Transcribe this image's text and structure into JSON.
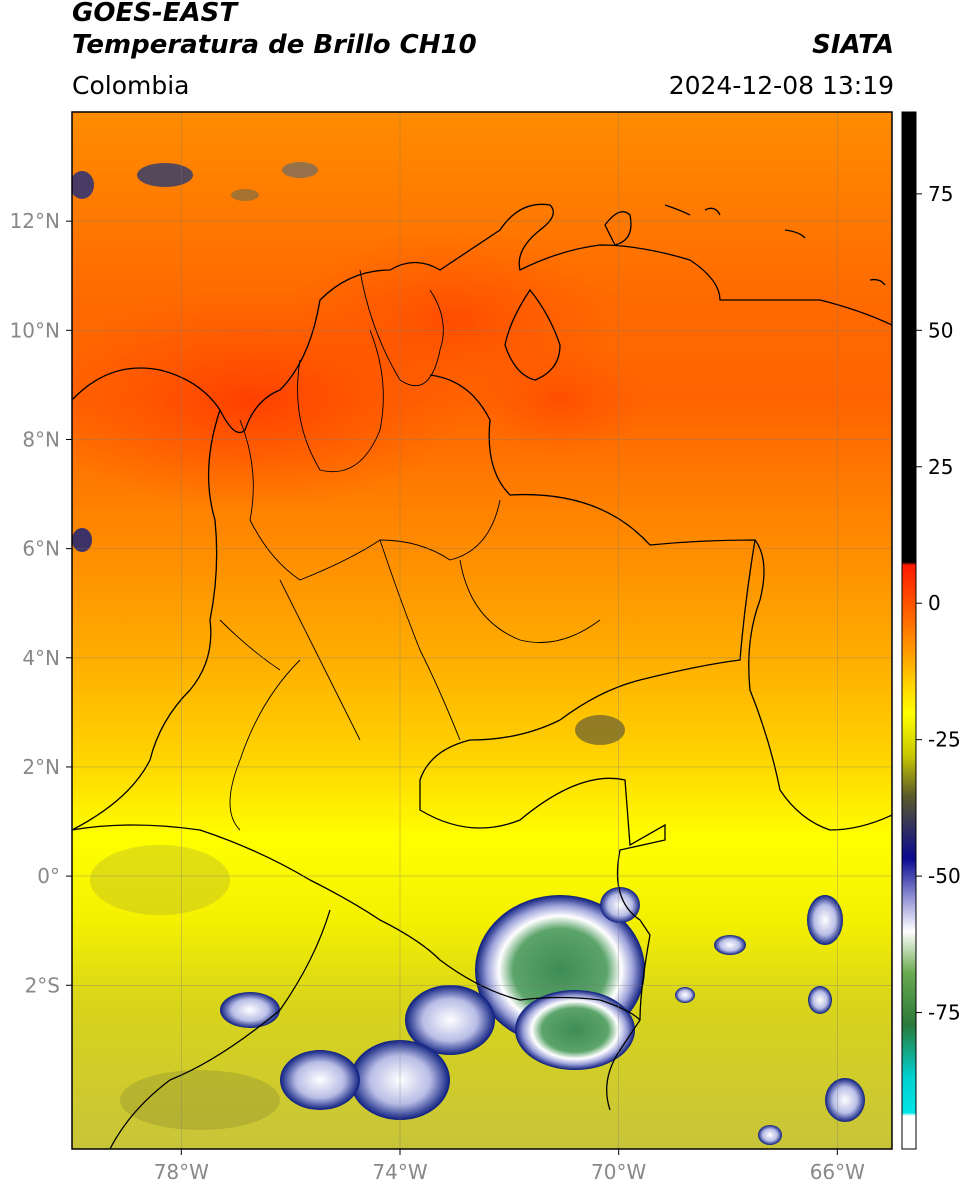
{
  "header": {
    "satellite": "GOES-EAST",
    "product": "Temperatura de Brillo CH10",
    "agency": "SIATA",
    "region": "Colombia",
    "timestamp": "2024-12-08 13:19"
  },
  "map": {
    "lon_range": [
      -80,
      -65
    ],
    "lat_range": [
      -5,
      14
    ],
    "lon_ticks": [
      {
        "value": -78,
        "label": "78°W"
      },
      {
        "value": -74,
        "label": "74°W"
      },
      {
        "value": -70,
        "label": "70°W"
      },
      {
        "value": -66,
        "label": "66°W"
      }
    ],
    "lat_ticks": [
      {
        "value": 12,
        "label": "12°N"
      },
      {
        "value": 10,
        "label": "10°N"
      },
      {
        "value": 8,
        "label": "8°N"
      },
      {
        "value": 6,
        "label": "6°N"
      },
      {
        "value": 4,
        "label": "4°N"
      },
      {
        "value": 2,
        "label": "2°N"
      },
      {
        "value": 0,
        "label": "0°"
      },
      {
        "value": -2,
        "label": "2°S"
      }
    ],
    "grid": true
  },
  "colorbar": {
    "range": [
      -100,
      90
    ],
    "ticks": [
      {
        "value": 75,
        "label": "75"
      },
      {
        "value": 50,
        "label": "50"
      },
      {
        "value": 25,
        "label": "25"
      },
      {
        "value": 0,
        "label": "0"
      },
      {
        "value": -25,
        "label": "-25"
      },
      {
        "value": -50,
        "label": "-50"
      },
      {
        "value": -75,
        "label": "-75"
      }
    ]
  },
  "colors": {
    "warm_red": "#ff4a00",
    "warm_orange": "#ff9a00",
    "mid_yellow": "#ffff00",
    "olive": "#c9c62a",
    "cold_navy": "#0a1a7a",
    "cold_green": "#3c8a50",
    "cold_cyan": "#00d8d0",
    "saturated_black": "#000000"
  }
}
